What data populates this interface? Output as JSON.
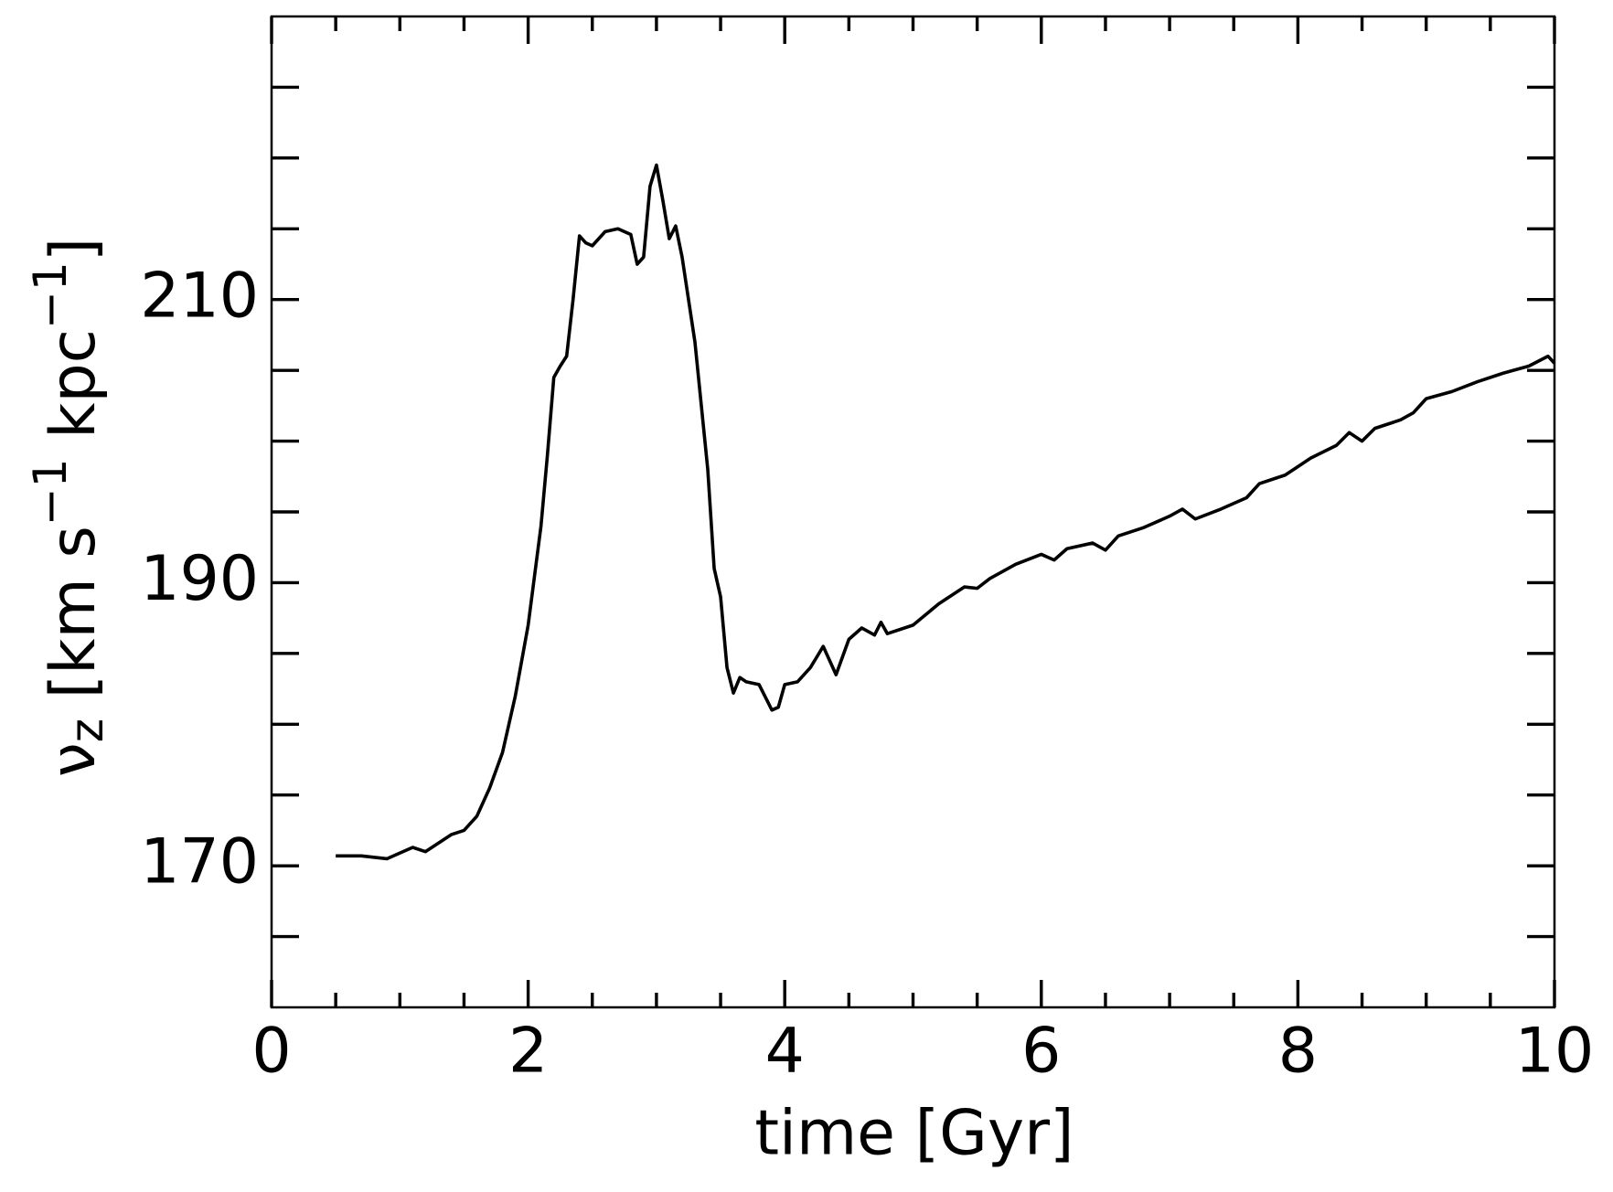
{
  "chart_data": {
    "type": "line",
    "x_label": "time [Gyr]",
    "y_label": [
      "ν",
      "z",
      " [km s",
      "−1",
      " kpc",
      "−1",
      "]"
    ],
    "xlim": [
      0,
      10
    ],
    "xticks": [
      0,
      2,
      4,
      6,
      8,
      10
    ],
    "xminor": [
      1,
      3,
      5,
      7,
      9,
      0.5,
      1.5,
      2.5,
      3.5,
      4.5,
      5.5,
      6.5,
      7.5,
      8.5,
      9.5
    ],
    "ylim": [
      160,
      230
    ],
    "yticks": [
      170,
      190,
      210
    ],
    "yminor": [
      165,
      175,
      180,
      185,
      195,
      200,
      205,
      215,
      220,
      225
    ],
    "series": [
      {
        "color": "#000000",
        "x": [
          0.5,
          0.7,
          0.9,
          1.1,
          1.2,
          1.4,
          1.5,
          1.6,
          1.7,
          1.8,
          1.9,
          2.0,
          2.05,
          2.1,
          2.15,
          2.2,
          2.25,
          2.3,
          2.35,
          2.4,
          2.45,
          2.5,
          2.6,
          2.7,
          2.8,
          2.85,
          2.9,
          2.95,
          3.0,
          3.05,
          3.1,
          3.15,
          3.2,
          3.3,
          3.4,
          3.45,
          3.5,
          3.55,
          3.6,
          3.65,
          3.7,
          3.8,
          3.9,
          3.95,
          4.0,
          4.1,
          4.2,
          4.3,
          4.4,
          4.5,
          4.6,
          4.7,
          4.75,
          4.8,
          5.0,
          5.2,
          5.4,
          5.5,
          5.6,
          5.8,
          6.0,
          6.1,
          6.2,
          6.4,
          6.5,
          6.6,
          6.8,
          7.0,
          7.1,
          7.2,
          7.4,
          7.6,
          7.7,
          7.9,
          8.0,
          8.1,
          8.3,
          8.4,
          8.5,
          8.6,
          8.8,
          8.9,
          9.0,
          9.2,
          9.4,
          9.6,
          9.8,
          9.95,
          10.0
        ],
        "values": [
          170.7,
          170.7,
          170.5,
          171.3,
          171.0,
          172.2,
          172.5,
          173.5,
          175.5,
          178.0,
          182.0,
          187.0,
          190.5,
          194,
          199,
          204.5,
          205.3,
          206.0,
          210,
          214.5,
          214.0,
          213.8,
          214.8,
          215.0,
          214.6,
          212.5,
          213,
          218,
          219.5,
          217,
          214.3,
          215.2,
          213,
          207,
          198,
          191,
          189,
          184,
          182.2,
          183.3,
          183,
          182.8,
          181,
          181.2,
          182.8,
          183,
          184,
          185.5,
          183.5,
          186,
          186.8,
          186.3,
          187.2,
          186.4,
          187,
          188.5,
          189.7,
          189.6,
          190.3,
          191.3,
          192.0,
          191.6,
          192.4,
          192.8,
          192.3,
          193.3,
          193.9,
          194.7,
          195.2,
          194.5,
          195.2,
          196.0,
          197,
          197.6,
          198.2,
          198.8,
          199.7,
          200.6,
          200.0,
          200.9,
          201.5,
          202.0,
          203.0,
          203.5,
          204.2,
          204.8,
          205.3,
          206.0,
          205.5
        ]
      }
    ]
  }
}
